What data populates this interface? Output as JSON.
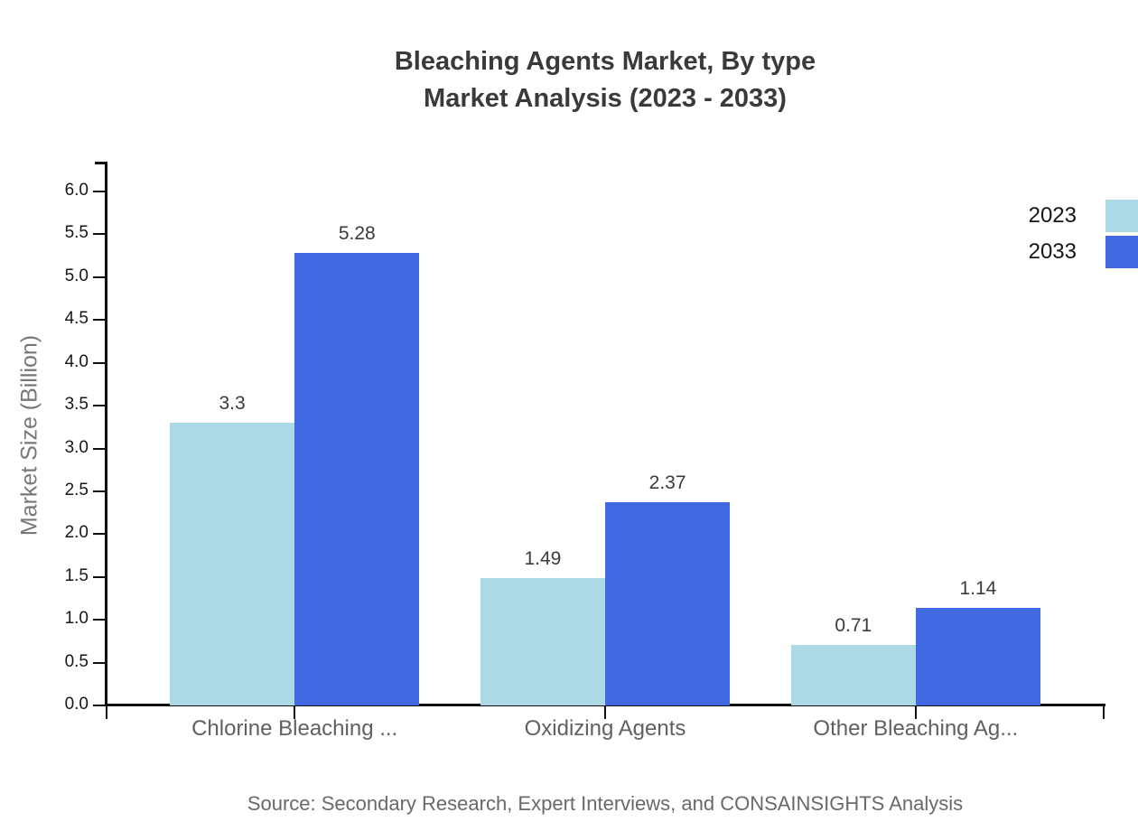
{
  "chart": {
    "title_line1": "Bleaching Agents Market, By type",
    "title_line2": "Market Analysis (2023 - 2033)",
    "ylabel": "Market Size (Billion)",
    "source": "Source: Secondary Research, Expert Interviews, and CONSAINSIGHTS Analysis"
  },
  "legend": {
    "position": "top-right",
    "items": [
      {
        "label": "2023",
        "color": "#ADD8E6"
      },
      {
        "label": "2033",
        "color": "#4169E1"
      }
    ]
  },
  "chart_data": {
    "type": "bar",
    "title": "Bleaching Agents Market, By type — Market Analysis (2023 - 2033)",
    "categories": [
      "Chlorine Bleaching ...",
      "Oxidizing Agents",
      "Other Bleaching Ag..."
    ],
    "series": [
      {
        "name": "2023",
        "color": "#ADD8E6",
        "values": [
          3.3,
          1.49,
          0.71
        ]
      },
      {
        "name": "2033",
        "color": "#4169E1",
        "values": [
          5.28,
          2.37,
          1.14
        ]
      }
    ],
    "xlabel": "",
    "ylabel": "Market Size (Billion)",
    "ylim": [
      0,
      6
    ],
    "ytick_step": 0.5,
    "grid": false,
    "legend_position": "top-right",
    "data_labels": true,
    "axis_color": "#0f0f0f"
  }
}
